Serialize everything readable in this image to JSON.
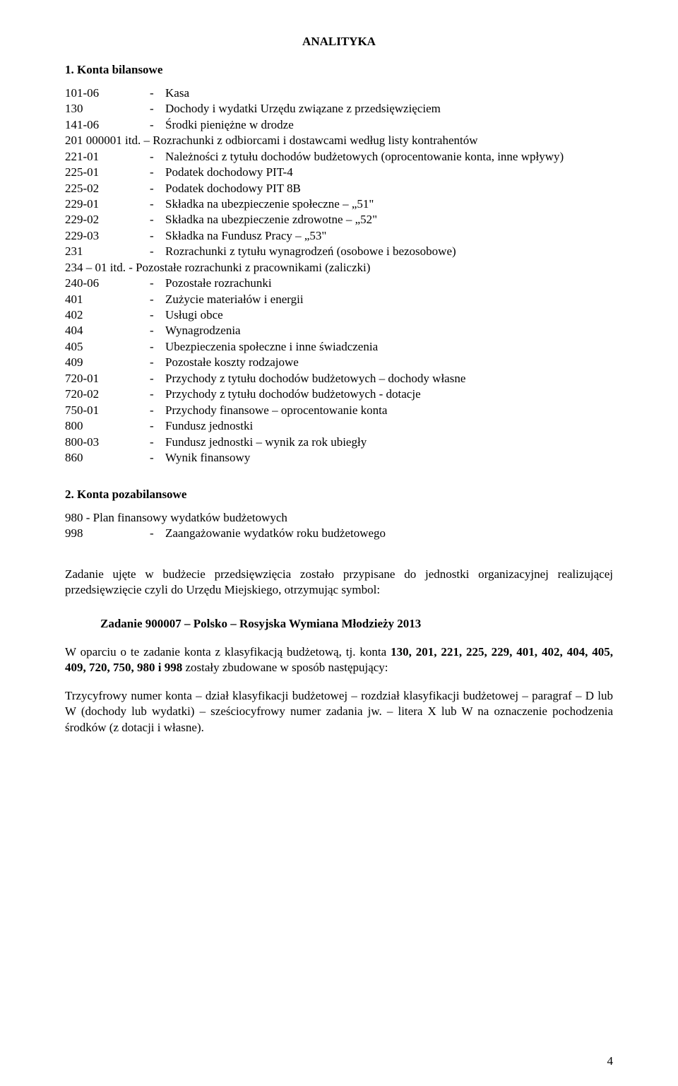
{
  "title": "ANALITYKA",
  "section1": {
    "heading": "1. Konta bilansowe",
    "rows": [
      {
        "code": "101-06",
        "desc": "Kasa"
      },
      {
        "code": "130",
        "desc": "Dochody i wydatki Urzędu  związane z przedsięwzięciem"
      },
      {
        "code": "141-06",
        "desc": "Środki pieniężne w drodze"
      },
      {
        "code": "201 000001 itd.",
        "desc_lead": "– Rozrachunki z odbiorcami i dostawcami według listy kontrahentów",
        "nodash": true
      },
      {
        "code": "221-01",
        "desc": "Należności z tytułu dochodów budżetowych (oprocentowanie konta, inne wpływy)"
      },
      {
        "code": "225-01",
        "desc": "Podatek dochodowy PIT-4"
      },
      {
        "code": "225-02",
        "desc": "Podatek dochodowy PIT 8B"
      },
      {
        "code": "229-01",
        "desc": "Składka na ubezpieczenie społeczne – „51\""
      },
      {
        "code": "229-02",
        "desc": "Składka na ubezpieczenie zdrowotne – „52\""
      },
      {
        "code": "229-03",
        "desc": "Składka na Fundusz Pracy – „53\""
      },
      {
        "code": "231",
        "desc": "Rozrachunki z tytułu wynagrodzeń (osobowe i bezosobowe)"
      },
      {
        "code": "234 – 01 itd.",
        "desc_lead": "- Pozostałe rozrachunki z pracownikami (zaliczki)",
        "nodash": true
      },
      {
        "code": "240-06",
        "desc": "Pozostałe rozrachunki"
      },
      {
        "code": "401",
        "desc": "Zużycie materiałów i energii"
      },
      {
        "code": "402",
        "desc": "Usługi obce"
      },
      {
        "code": "404",
        "desc": "Wynagrodzenia"
      },
      {
        "code": "405",
        "desc": "Ubezpieczenia społeczne i inne świadczenia"
      },
      {
        "code": "409",
        "desc": "Pozostałe koszty rodzajowe"
      },
      {
        "code": "720-01",
        "desc": "Przychody z tytułu dochodów budżetowych – dochody własne"
      },
      {
        "code": "720-02",
        "desc": "Przychody z tytułu dochodów budżetowych - dotacje"
      },
      {
        "code": "750-01",
        "desc": "Przychody finansowe – oprocentowanie konta"
      },
      {
        "code": "800",
        "desc": "Fundusz jednostki"
      },
      {
        "code": "800-03",
        "desc": "Fundusz jednostki – wynik za rok ubiegły"
      },
      {
        "code": "860",
        "desc": "Wynik finansowy"
      }
    ]
  },
  "section2": {
    "heading": "2. Konta pozabilansowe",
    "rows": [
      {
        "code": "980",
        "desc_lead": "- Plan finansowy wydatków budżetowych",
        "nodash": true
      },
      {
        "code": "998",
        "desc": "Zaangażowanie wydatków roku budżetowego"
      }
    ]
  },
  "para1": "Zadanie ujęte w budżecie przedsięwzięcia zostało przypisane do jednostki organizacyjnej realizującej przedsięwzięcie czyli do Urzędu Miejskiego, otrzymując symbol:",
  "task_heading": "Zadanie 900007 –  Polsko – Rosyjska Wymiana Młodzieży 2013",
  "para2_lead": "W oparciu o te zadanie konta z klasyfikacją budżetową, tj. konta ",
  "para2_bold": "130, 201, 221, 225, 229, 401, 402, 404, 405, 409, 720, 750, 980 i 998",
  "para2_tail": "  zostały zbudowane w sposób następujący:",
  "para3": "Trzycyfrowy numer konta – dział klasyfikacji budżetowej – rozdział klasyfikacji budżetowej – paragraf – D lub W (dochody lub wydatki) – sześciocyfrowy numer zadania jw. – litera X lub W na oznaczenie pochodzenia środków (z dotacji i własne).",
  "page_number": "4"
}
